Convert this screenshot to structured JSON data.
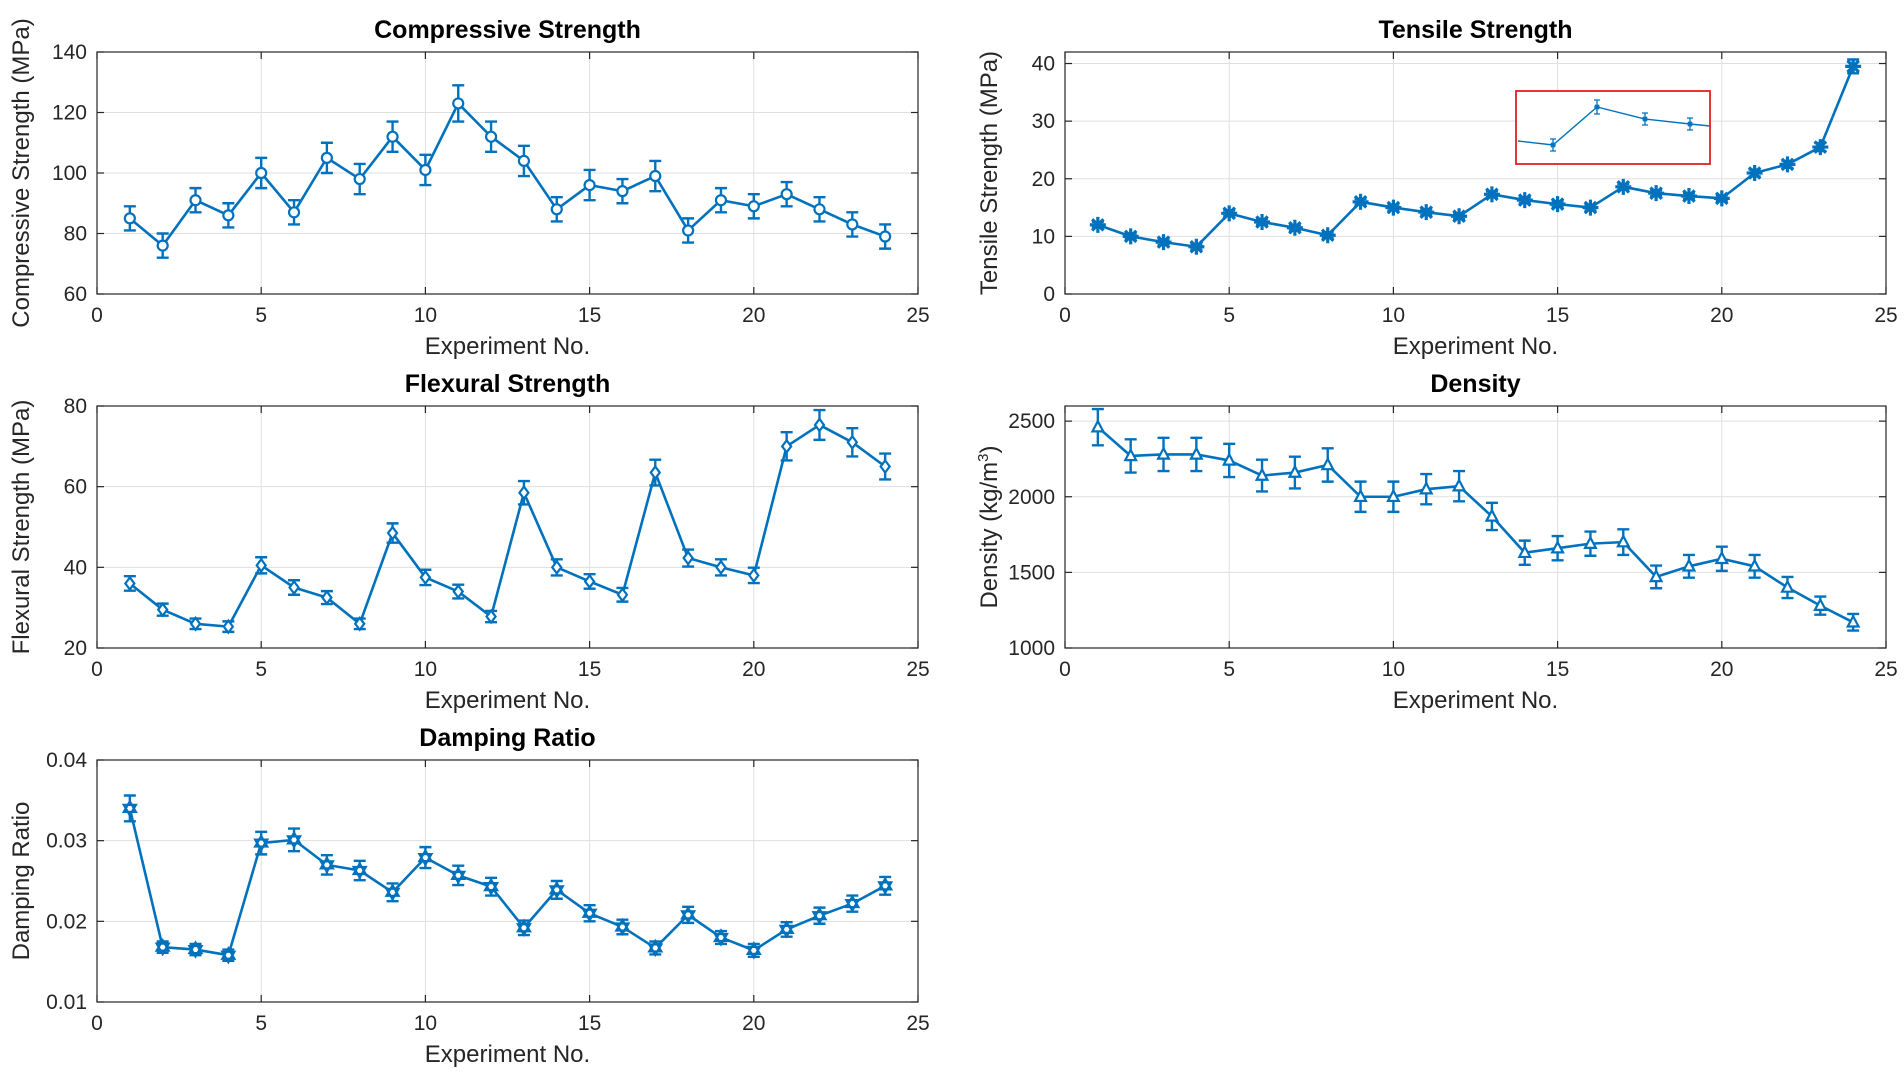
{
  "colors": {
    "series": "#0072BD",
    "inset_border": "#E02020",
    "grid": "#DFDFDF",
    "axis": "#262626"
  },
  "chart_data": [
    {
      "id": "compressive",
      "type": "line",
      "title": "Compressive Strength",
      "xlabel": "Experiment No.",
      "ylabel": "Compressive Strength (MPa)",
      "xlim": [
        0,
        25
      ],
      "ylim": [
        60,
        140
      ],
      "xticks": [
        0,
        5,
        10,
        15,
        20,
        25
      ],
      "yticks": [
        60,
        80,
        100,
        120,
        140
      ],
      "marker": "circle",
      "grid": true,
      "x": [
        1,
        2,
        3,
        4,
        5,
        6,
        7,
        8,
        9,
        10,
        11,
        12,
        13,
        14,
        15,
        16,
        17,
        18,
        19,
        20,
        21,
        22,
        23,
        24
      ],
      "y": [
        85,
        76,
        91,
        86,
        100,
        87,
        105,
        98,
        112,
        101,
        123,
        112,
        104,
        88,
        96,
        94,
        99,
        81,
        91,
        89,
        93,
        88,
        83,
        79
      ],
      "err": [
        4,
        4,
        4,
        4,
        5,
        4,
        5,
        5,
        5,
        5,
        6,
        5,
        5,
        4,
        5,
        4,
        5,
        4,
        4,
        4,
        4,
        4,
        4,
        4
      ]
    },
    {
      "id": "tensile",
      "type": "line",
      "title": "Tensile Strength",
      "xlabel": "Experiment No.",
      "ylabel": "Tensile Strength (MPa)",
      "xlim": [
        0,
        25
      ],
      "ylim": [
        0,
        42
      ],
      "xticks": [
        0,
        5,
        10,
        15,
        20,
        25
      ],
      "yticks": [
        0,
        10,
        20,
        30,
        40
      ],
      "marker": "asterisk",
      "grid": true,
      "inset": "magnified view shown in red box",
      "x": [
        1,
        2,
        3,
        4,
        5,
        6,
        7,
        8,
        9,
        10,
        11,
        12,
        13,
        14,
        15,
        16,
        17,
        18,
        19,
        20,
        21,
        22,
        23,
        24
      ],
      "y": [
        12,
        10,
        9,
        8.2,
        14,
        12.5,
        11.5,
        10.2,
        16,
        15,
        14.2,
        13.5,
        17.3,
        16.3,
        15.6,
        15,
        18.6,
        17.5,
        17,
        16.6,
        21,
        22.5,
        25.5,
        39.5
      ],
      "err": [
        0.5,
        0.5,
        0.5,
        0.5,
        0.5,
        0.5,
        0.5,
        0.5,
        0.5,
        0.5,
        0.5,
        0.5,
        0.5,
        0.5,
        0.5,
        0.5,
        0.5,
        0.5,
        0.5,
        0.5,
        0.6,
        0.6,
        0.7,
        1.2
      ]
    },
    {
      "id": "flexural",
      "type": "line",
      "title": "Flexural Strength",
      "xlabel": "Experiment No.",
      "ylabel": "Flexural Strength (MPa)",
      "xlim": [
        0,
        25
      ],
      "ylim": [
        20,
        80
      ],
      "xticks": [
        0,
        5,
        10,
        15,
        20,
        25
      ],
      "yticks": [
        20,
        40,
        60,
        80
      ],
      "marker": "diamond",
      "grid": true,
      "x": [
        1,
        2,
        3,
        4,
        5,
        6,
        7,
        8,
        9,
        10,
        11,
        12,
        13,
        14,
        15,
        16,
        17,
        18,
        19,
        20,
        21,
        22,
        23,
        24
      ],
      "y": [
        36,
        29.5,
        26,
        25.3,
        40.5,
        35,
        32.5,
        26,
        48.5,
        37.5,
        34,
        27.8,
        58.5,
        40,
        36.5,
        33.2,
        63.5,
        42.3,
        40,
        38,
        70,
        75.3,
        71,
        65
      ],
      "err": [
        1.8,
        1.5,
        1.3,
        1.3,
        2,
        1.8,
        1.6,
        1.3,
        2.4,
        1.9,
        1.7,
        1.4,
        2.9,
        2,
        1.8,
        1.7,
        3.2,
        2.1,
        2,
        1.9,
        3.5,
        3.7,
        3.5,
        3.2
      ]
    },
    {
      "id": "density",
      "type": "line",
      "title": "Density",
      "xlabel": "Experiment No.",
      "ylabel": "Density",
      "ylabel_unit_base": "(kg/m",
      "ylabel_unit_exp": "3",
      "ylabel_unit_end": ")",
      "xlim": [
        0,
        25
      ],
      "ylim": [
        1000,
        2600
      ],
      "xticks": [
        0,
        5,
        10,
        15,
        20,
        25
      ],
      "yticks": [
        1000,
        1500,
        2000,
        2500
      ],
      "marker": "triangle-up",
      "grid": true,
      "x": [
        1,
        2,
        3,
        4,
        5,
        6,
        7,
        8,
        9,
        10,
        11,
        12,
        13,
        14,
        15,
        16,
        17,
        18,
        19,
        20,
        21,
        22,
        23,
        24
      ],
      "y": [
        2460,
        2270,
        2280,
        2280,
        2240,
        2140,
        2160,
        2210,
        2000,
        2000,
        2050,
        2070,
        1870,
        1630,
        1660,
        1690,
        1700,
        1470,
        1540,
        1590,
        1540,
        1400,
        1280,
        1170
      ],
      "err": [
        120,
        110,
        110,
        110,
        110,
        105,
        105,
        110,
        100,
        100,
        100,
        100,
        90,
        80,
        80,
        80,
        85,
        75,
        75,
        80,
        75,
        70,
        60,
        55
      ]
    },
    {
      "id": "damping",
      "type": "line",
      "title": "Damping Ratio",
      "xlabel": "Experiment No.",
      "ylabel": "Damping Ratio",
      "xlim": [
        0,
        25
      ],
      "ylim": [
        0.01,
        0.04
      ],
      "xticks": [
        0,
        5,
        10,
        15,
        20,
        25
      ],
      "yticks": [
        0.01,
        0.02,
        0.03,
        0.04
      ],
      "ytick_labels": [
        "0.01",
        "0.02",
        "0.03",
        "0.04"
      ],
      "marker": "hexagram",
      "grid": true,
      "x": [
        1,
        2,
        3,
        4,
        5,
        6,
        7,
        8,
        9,
        10,
        11,
        12,
        13,
        14,
        15,
        16,
        17,
        18,
        19,
        20,
        21,
        22,
        23,
        24
      ],
      "y": [
        0.034,
        0.0168,
        0.0165,
        0.0158,
        0.0297,
        0.0301,
        0.027,
        0.0263,
        0.0236,
        0.0279,
        0.0257,
        0.0243,
        0.0192,
        0.0239,
        0.021,
        0.0193,
        0.0167,
        0.0208,
        0.018,
        0.0164,
        0.019,
        0.0207,
        0.0222,
        0.0244
      ],
      "err": [
        0.0016,
        0.0007,
        0.0007,
        0.0007,
        0.0014,
        0.0014,
        0.0012,
        0.0012,
        0.0011,
        0.0013,
        0.0012,
        0.0011,
        0.0009,
        0.0011,
        0.001,
        0.0009,
        0.0008,
        0.001,
        0.0008,
        0.0008,
        0.0009,
        0.001,
        0.001,
        0.0011
      ]
    }
  ]
}
